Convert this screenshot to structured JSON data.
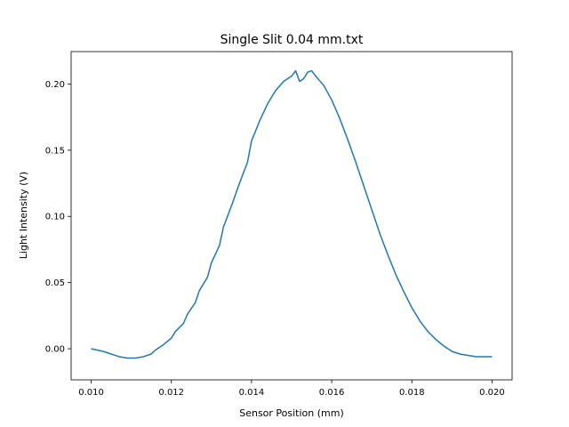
{
  "chart_data": {
    "type": "line",
    "title": "Single Slit 0.04 mm.txt",
    "xlabel": "Sensor Position (mm)",
    "ylabel": "Light Intensity (V)",
    "xlim": [
      0.0095,
      0.0205
    ],
    "ylim": [
      -0.0235,
      0.2245
    ],
    "xticks": [
      0.01,
      0.012,
      0.014,
      0.016,
      0.018,
      0.02
    ],
    "xtick_labels": [
      "0.010",
      "0.012",
      "0.014",
      "0.016",
      "0.018",
      "0.020"
    ],
    "yticks": [
      0.0,
      0.05,
      0.1,
      0.15,
      0.2
    ],
    "ytick_labels": [
      "0.00",
      "0.05",
      "0.10",
      "0.15",
      "0.20"
    ],
    "grid": false,
    "series": [
      {
        "color": "#1f77b4",
        "x": [
          0.01,
          0.0103,
          0.0105,
          0.0107,
          0.0109,
          0.0111,
          0.0113,
          0.0115,
          0.0116,
          0.0118,
          0.012,
          0.0121,
          0.0123,
          0.0124,
          0.0126,
          0.0127,
          0.0129,
          0.013,
          0.0132,
          0.0133,
          0.0135,
          0.0137,
          0.0139,
          0.014,
          0.0142,
          0.0144,
          0.0146,
          0.0148,
          0.015,
          0.0151,
          0.0152,
          0.0153,
          0.0154,
          0.0155,
          0.0156,
          0.0158,
          0.016,
          0.0162,
          0.0164,
          0.0166,
          0.0168,
          0.017,
          0.0172,
          0.0174,
          0.0176,
          0.0178,
          0.018,
          0.0182,
          0.0184,
          0.0186,
          0.0188,
          0.019,
          0.0192,
          0.0194,
          0.0196,
          0.0198,
          0.02
        ],
        "y": [
          0.0,
          -0.002,
          -0.004,
          -0.006,
          -0.007,
          -0.007,
          -0.006,
          -0.004,
          -0.001,
          0.003,
          0.008,
          0.013,
          0.019,
          0.026,
          0.035,
          0.044,
          0.054,
          0.065,
          0.078,
          0.092,
          0.108,
          0.125,
          0.141,
          0.157,
          0.172,
          0.185,
          0.195,
          0.202,
          0.206,
          0.21,
          0.202,
          0.204,
          0.209,
          0.21,
          0.206,
          0.199,
          0.188,
          0.174,
          0.158,
          0.141,
          0.123,
          0.105,
          0.087,
          0.071,
          0.056,
          0.043,
          0.031,
          0.021,
          0.013,
          0.007,
          0.002,
          -0.002,
          -0.004,
          -0.005,
          -0.006,
          -0.006,
          -0.006
        ]
      }
    ]
  }
}
